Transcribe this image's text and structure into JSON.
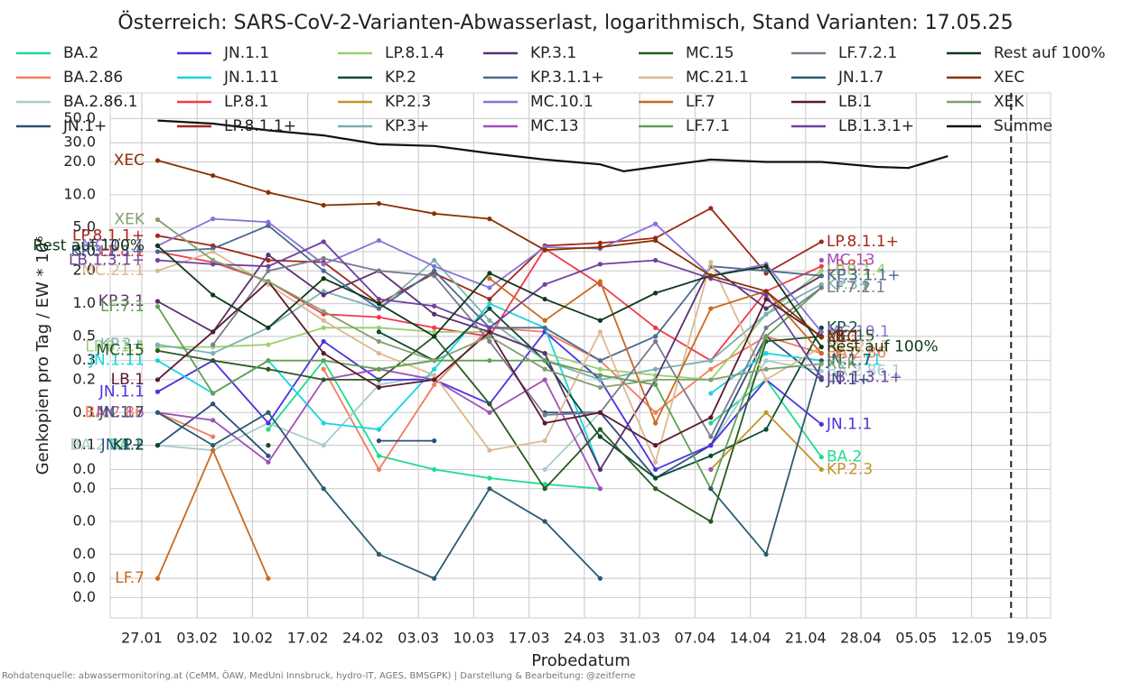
{
  "chart_data": {
    "type": "line",
    "title": "Österreich: SARS-CoV-2-Varianten-Abwasserlast, logarithmisch, Stand Varianten: 17.05.25",
    "x_label": "Probedatum",
    "y_label": "Genkopien pro Tag / EW * 10⁶",
    "source": "Rohdatenquelle: abwassermonitoring.at (CeMM, ÖAW, MedUni Innsbruck, hydro-IT, AGES, BMSGPK) | Darstellung & Bearbeitung: @zeitferne",
    "log_y": true,
    "grid": true,
    "legend": "top",
    "vline": "17.05",
    "xlim": [
      "23.01",
      "22.05"
    ],
    "xticks": [
      "27.01",
      "03.02",
      "10.02",
      "17.02",
      "24.02",
      "03.03",
      "10.03",
      "17.03",
      "24.03",
      "31.03",
      "07.04",
      "14.04",
      "21.04",
      "28.04",
      "05.05",
      "12.05",
      "19.05"
    ],
    "ylim": [
      0.0013,
      86
    ],
    "yticks": [
      {
        "value": 50,
        "label": "50.0"
      },
      {
        "value": 30,
        "label": "30.0"
      },
      {
        "value": 20,
        "label": "20.0"
      },
      {
        "value": 10,
        "label": "10.0"
      },
      {
        "value": 5,
        "label": "5.0"
      },
      {
        "value": 3,
        "label": "3.0"
      },
      {
        "value": 2,
        "label": "2.0"
      },
      {
        "value": 1,
        "label": "1.0"
      },
      0.5,
      0.3,
      0.2,
      0.1,
      {
        "value": 0.05,
        "label": "0.1"
      },
      {
        "value": 0.03,
        "label": "0.0"
      },
      {
        "value": 0.02,
        "label": "0.0"
      },
      {
        "value": 0.01,
        "label": "0.0"
      },
      {
        "value": 0.005,
        "label": "0.0"
      },
      {
        "value": 0.003,
        "label": "0.0"
      },
      {
        "value": 0.002,
        "label": "0.0"
      }
    ],
    "x": [
      "29.01",
      "05.02",
      "12.02",
      "19.02",
      "26.02",
      "05.03",
      "12.03",
      "19.03",
      "26.03",
      "02.04",
      "09.04",
      "16.04",
      "23.04"
    ],
    "series": [
      {
        "name": "BA.2",
        "color": "#1fdc8f",
        "values": [
          0.05,
          null,
          0.07,
          0.3,
          0.04,
          0.03,
          0.025,
          0.022,
          0.02,
          null,
          0.08,
          0.2,
          0.039
        ]
      },
      {
        "name": "BA.2.86",
        "color": "#f47c5a",
        "values": [
          0.1,
          0.06,
          null,
          0.25,
          0.03,
          0.18,
          0.6,
          0.55,
          0.3,
          0.1,
          0.25,
          0.5,
          0.35
        ]
      },
      {
        "name": "BA.2.86.1",
        "color": "#a8cccc",
        "values": [
          0.05,
          0.045,
          0.08,
          0.05,
          0.18,
          0.22,
          null,
          0.03,
          0.1,
          null,
          0.05,
          0.3,
          0.24
        ]
      },
      {
        "name": "JN.1+",
        "color": "#2d4e7e",
        "values": [
          0.05,
          0.12,
          0.04,
          null,
          0.055,
          0.055,
          null,
          0.1,
          0.1,
          0.025,
          0.05,
          0.5,
          0.2
        ]
      },
      {
        "name": "JN.1.1",
        "color": "#4b32e0",
        "values": [
          0.155,
          0.3,
          0.08,
          0.45,
          0.2,
          0.2,
          0.12,
          0.55,
          0.2,
          0.03,
          0.05,
          0.2,
          0.078
        ]
      },
      {
        "name": "JN.1.11",
        "color": "#18d4e0",
        "values": [
          0.3,
          0.15,
          0.3,
          0.08,
          0.07,
          0.25,
          1.0,
          0.6,
          0.03,
          null,
          0.15,
          0.35,
          0.3
        ]
      },
      {
        "name": "LP.8.1",
        "color": "#f03a4a",
        "values": [
          3.0,
          2.4,
          1.6,
          0.8,
          0.75,
          0.6,
          0.5,
          3.2,
          1.5,
          0.6,
          0.3,
          1.3,
          2.2
        ]
      },
      {
        "name": "LP.8.1.1+",
        "color": "#a0281a",
        "values": [
          4.2,
          3.4,
          2.5,
          2.4,
          1.0,
          1.9,
          1.1,
          3.4,
          3.6,
          4.0,
          7.5,
          1.9,
          3.7
        ]
      },
      {
        "name": "LP.8.1.4",
        "color": "#98d070",
        "values": [
          0.4,
          0.4,
          0.42,
          0.6,
          0.6,
          0.55,
          0.55,
          0.35,
          0.25,
          0.22,
          0.2,
          0.8,
          2.0
        ]
      },
      {
        "name": "KP.2",
        "color": "#0c4a32",
        "values": [
          0.05,
          null,
          0.05,
          null,
          0.55,
          0.3,
          0.9,
          0.3,
          0.06,
          0.025,
          0.04,
          0.07,
          0.6
        ]
      },
      {
        "name": "KP.2.3",
        "color": "#c49428",
        "values": [
          null,
          null,
          null,
          null,
          null,
          null,
          null,
          null,
          null,
          null,
          0.03,
          0.1,
          0.03
        ]
      },
      {
        "name": "KP.3+",
        "color": "#7ab0b0",
        "values": [
          0.42,
          0.35,
          0.6,
          1.3,
          0.9,
          2.5,
          0.7,
          0.3,
          0.2,
          0.25,
          0.3,
          0.8,
          1.5
        ]
      },
      {
        "name": "KP.3.1",
        "color": "#5a3070",
        "values": [
          1.05,
          0.55,
          2.8,
          1.2,
          2.0,
          0.8,
          0.55,
          0.35,
          0.03,
          0.2,
          2.2,
          0.9,
          1.8
        ]
      },
      {
        "name": "KP.3.1.1+",
        "color": "#4a6a90",
        "values": [
          3.0,
          3.2,
          5.2,
          2.0,
          0.9,
          2.0,
          0.6,
          0.6,
          0.3,
          0.5,
          2.2,
          2.0,
          1.8
        ]
      },
      {
        "name": "MC.10.1",
        "color": "#8a70d8",
        "values": [
          3.4,
          6.0,
          5.6,
          2.3,
          3.8,
          2.2,
          1.4,
          3.3,
          3.2,
          5.4,
          1.8,
          2.3,
          0.55
        ]
      },
      {
        "name": "MC.13",
        "color": "#a050b8",
        "values": [
          0.1,
          0.085,
          0.035,
          0.2,
          0.25,
          0.2,
          0.1,
          0.2,
          0.02,
          null,
          0.03,
          null,
          2.5
        ]
      },
      {
        "name": "MC.15",
        "color": "#2a5a20",
        "values": [
          0.37,
          0.3,
          0.25,
          0.2,
          0.2,
          0.5,
          0.12,
          0.02,
          0.07,
          0.02,
          0.01,
          0.45,
          0.5
        ]
      },
      {
        "name": "MC.21.1",
        "color": "#dcb890",
        "values": [
          2.0,
          3.0,
          1.5,
          0.7,
          0.35,
          0.22,
          0.045,
          0.055,
          0.55,
          0.035,
          2.4,
          0.2,
          0.4
        ]
      },
      {
        "name": "LF.7",
        "color": "#c86a20",
        "values": [
          0.003,
          0.045,
          0.003,
          null,
          null,
          null,
          1.7,
          0.7,
          1.6,
          0.08,
          0.9,
          1.3,
          0.35
        ]
      },
      {
        "name": "LF.7.1",
        "color": "#60a050",
        "values": [
          0.94,
          0.15,
          0.3,
          0.3,
          0.25,
          0.3,
          0.3,
          0.3,
          0.22,
          0.18,
          0.02,
          0.5,
          1.4
        ]
      },
      {
        "name": "LF.7.2.1",
        "color": "#7a7a90",
        "values": [
          null,
          0.42,
          2.0,
          2.6,
          2.0,
          1.8,
          0.45,
          0.095,
          0.1,
          0.45,
          0.06,
          0.6,
          1.4
        ]
      },
      {
        "name": "JN.1.7",
        "color": "#2a5a70",
        "values": [
          0.1,
          0.05,
          0.1,
          0.02,
          0.005,
          0.003,
          0.02,
          0.01,
          0.003,
          null,
          0.02,
          0.005,
          0.3
        ]
      },
      {
        "name": "LB.1",
        "color": "#5a1a30",
        "values": [
          0.2,
          0.55,
          1.6,
          0.35,
          0.17,
          0.2,
          0.55,
          0.08,
          0.1,
          0.05,
          0.09,
          1.1,
          0.5
        ]
      },
      {
        "name": "LB.1.3.1+",
        "color": "#7040a0",
        "values": [
          2.5,
          2.3,
          2.2,
          3.7,
          1.1,
          0.95,
          0.6,
          1.5,
          2.3,
          2.5,
          1.7,
          1.2,
          0.21
        ]
      },
      {
        "name": "Rest auf 100%",
        "color": "#0e3a1a",
        "values": [
          3.4,
          1.2,
          0.6,
          1.7,
          1.0,
          0.5,
          1.9,
          1.1,
          0.7,
          1.25,
          1.8,
          2.2,
          0.4
        ]
      },
      {
        "name": "XEC",
        "color": "#8a3000",
        "values": [
          20.6,
          15,
          10.5,
          8.0,
          8.3,
          6.7,
          6.0,
          3.1,
          3.3,
          3.8,
          1.8,
          1.3,
          0.49
        ]
      },
      {
        "name": "XEK",
        "color": "#80a070",
        "values": [
          5.9,
          2.5,
          1.6,
          0.85,
          0.45,
          0.3,
          0.5,
          0.25,
          0.17,
          0.2,
          0.2,
          0.25,
          0.28
        ]
      },
      {
        "name": "Summe",
        "color": "#111111",
        "x": [
          "29.01",
          "05.02",
          "12.02",
          "19.02",
          "26.02",
          "05.03",
          "12.03",
          "19.03",
          "26.03",
          "29.03",
          "02.04",
          "09.04",
          "16.04",
          "23.04",
          "30.04",
          "04.05",
          "09.05"
        ],
        "values": [
          48,
          45,
          39,
          35,
          29,
          28,
          24,
          21,
          19,
          16.4,
          18,
          21,
          20,
          20,
          18,
          17.6,
          22.6
        ]
      }
    ]
  }
}
